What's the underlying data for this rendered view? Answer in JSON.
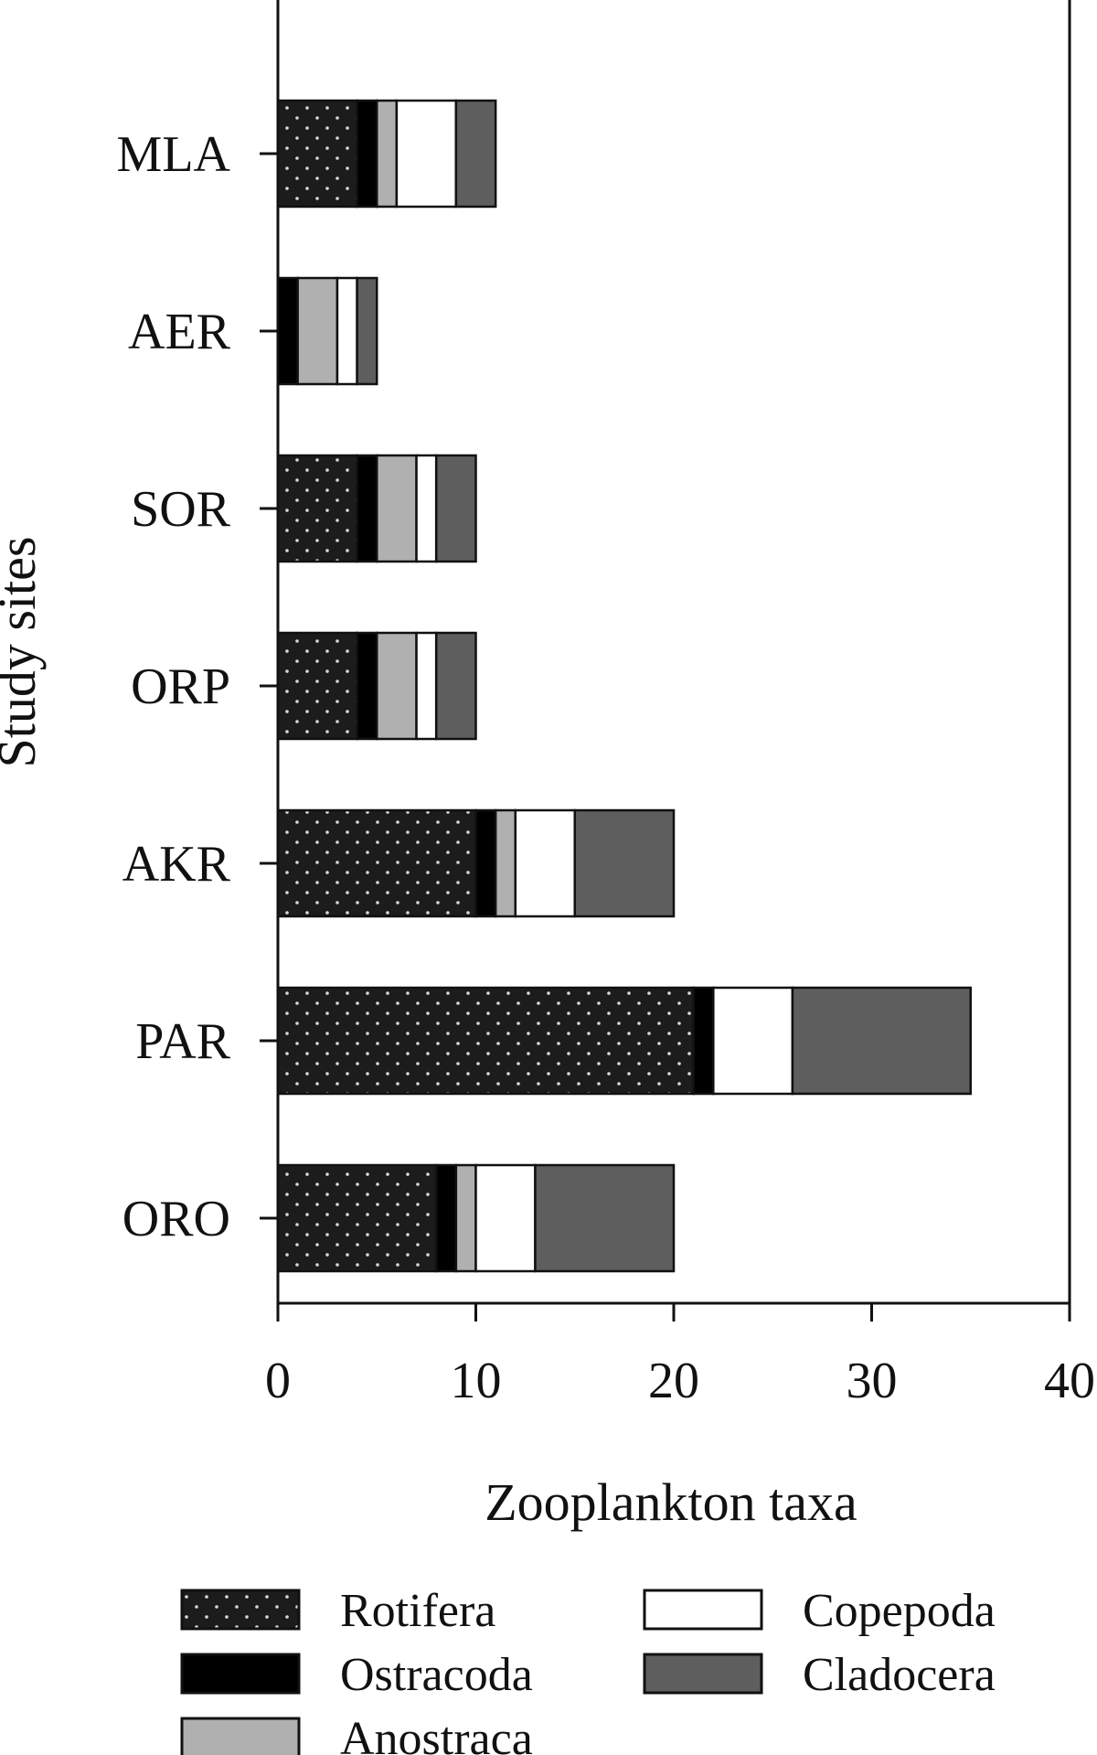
{
  "chart_data": {
    "type": "bar",
    "orientation": "horizontal",
    "stacked": true,
    "title": "",
    "xlabel": "Zooplankton taxa",
    "ylabel": "Study sites",
    "xlim": [
      0,
      40
    ],
    "xticks": [
      "0",
      "10",
      "20",
      "30",
      "40"
    ],
    "grid": false,
    "legend_position": "bottom",
    "categories": [
      "MLA",
      "AER",
      "SOR",
      "ORP",
      "AKR",
      "PAR",
      "ORO"
    ],
    "series": [
      {
        "name": "Rotifera",
        "pattern": "dotted",
        "color": "#1c1c1c",
        "values": [
          4,
          0,
          4,
          4,
          10,
          21,
          8
        ]
      },
      {
        "name": "Ostracoda",
        "color": "#000000",
        "values": [
          1,
          1,
          1,
          1,
          1,
          1,
          1
        ]
      },
      {
        "name": "Anostraca",
        "color": "#b0b0b0",
        "values": [
          1,
          2,
          2,
          2,
          1,
          0,
          1
        ]
      },
      {
        "name": "Copepoda",
        "color": "#ffffff",
        "values": [
          3,
          1,
          1,
          1,
          3,
          4,
          3
        ]
      },
      {
        "name": "Cladocera",
        "color": "#5e5e5e",
        "values": [
          2,
          1,
          2,
          2,
          5,
          9,
          7
        ]
      }
    ]
  }
}
